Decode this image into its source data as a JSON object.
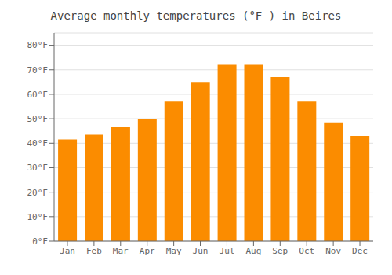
{
  "chart_data": {
    "type": "bar",
    "title": "Average monthly temperatures (°F ) in Beires",
    "categories": [
      "Jan",
      "Feb",
      "Mar",
      "Apr",
      "May",
      "Jun",
      "Jul",
      "Aug",
      "Sep",
      "Oct",
      "Nov",
      "Dec"
    ],
    "values": [
      41.5,
      43.5,
      46.5,
      50.0,
      57.0,
      65.0,
      72.0,
      72.0,
      67.0,
      57.0,
      48.5,
      43.0
    ],
    "color": "#FB8C00",
    "ylim": [
      0,
      85
    ],
    "yticks": [
      {
        "value": 0,
        "label": "0°F"
      },
      {
        "value": 10,
        "label": "10°F"
      },
      {
        "value": 20,
        "label": "20°F"
      },
      {
        "value": 30,
        "label": "30°F"
      },
      {
        "value": 40,
        "label": "40°F"
      },
      {
        "value": 50,
        "label": "50°F"
      },
      {
        "value": 60,
        "label": "60°F"
      },
      {
        "value": 70,
        "label": "70°F"
      },
      {
        "value": 80,
        "label": "80°F"
      }
    ],
    "grid": true
  }
}
